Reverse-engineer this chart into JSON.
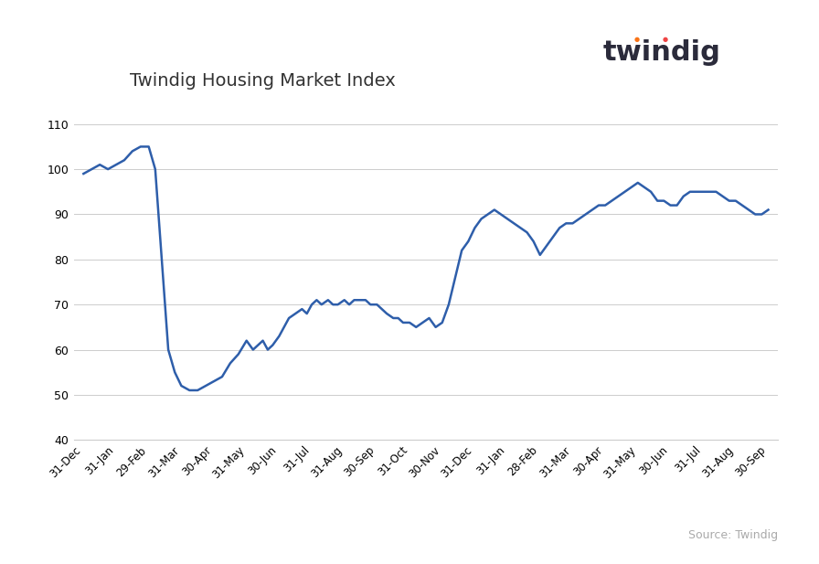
{
  "title": "Twindig Housing Market Index",
  "line_color": "#2E5EAA",
  "line_width": 1.8,
  "background_color": "#ffffff",
  "source_text": "Source: Twindig",
  "ylim": [
    40,
    115
  ],
  "yticks": [
    40,
    50,
    60,
    70,
    80,
    90,
    100,
    110
  ],
  "x_labels": [
    "31-Dec",
    "31-Jan",
    "29-Feb",
    "31-Mar",
    "30-Apr",
    "31-May",
    "30-Jun",
    "31-Jul",
    "31-Aug",
    "30-Sep",
    "31-Oct",
    "30-Nov",
    "31-Dec",
    "31-Jan",
    "28-Feb",
    "31-Mar",
    "30-Apr",
    "31-May",
    "30-Jun",
    "31-Jul",
    "31-Aug",
    "30-Sep"
  ],
  "time_points": [
    0.0,
    0.25,
    0.5,
    0.75,
    1.0,
    1.25,
    1.5,
    1.75,
    2.0,
    2.2,
    2.4,
    2.6,
    2.8,
    3.0,
    3.25,
    3.5,
    3.75,
    4.0,
    4.25,
    4.5,
    4.75,
    5.0,
    5.1,
    5.2,
    5.35,
    5.5,
    5.65,
    5.8,
    6.0,
    6.15,
    6.3,
    6.5,
    6.7,
    6.85,
    7.0,
    7.15,
    7.3,
    7.5,
    7.65,
    7.8,
    8.0,
    8.15,
    8.3,
    8.5,
    8.65,
    8.8,
    9.0,
    9.15,
    9.3,
    9.5,
    9.65,
    9.8,
    10.0,
    10.2,
    10.4,
    10.6,
    10.8,
    11.0,
    11.2,
    11.4,
    11.6,
    11.8,
    12.0,
    12.2,
    12.4,
    12.6,
    12.8,
    13.0,
    13.2,
    13.4,
    13.6,
    13.8,
    14.0,
    14.2,
    14.4,
    14.6,
    14.8,
    15.0,
    15.2,
    15.4,
    15.6,
    15.8,
    16.0,
    16.2,
    16.4,
    16.6,
    16.8,
    17.0,
    17.2,
    17.4,
    17.6,
    17.8,
    18.0,
    18.2,
    18.4,
    18.6,
    18.8,
    19.0,
    19.2,
    19.4,
    19.6,
    19.8,
    20.0,
    20.2,
    20.4,
    20.6,
    20.8,
    21.0
  ],
  "values": [
    99,
    100,
    101,
    100,
    101,
    102,
    104,
    105,
    105,
    100,
    80,
    60,
    55,
    52,
    51,
    51,
    52,
    53,
    54,
    57,
    59,
    62,
    61,
    60,
    61,
    62,
    60,
    61,
    63,
    65,
    67,
    68,
    69,
    68,
    70,
    71,
    70,
    71,
    70,
    70,
    71,
    70,
    71,
    71,
    71,
    70,
    70,
    69,
    68,
    67,
    67,
    66,
    66,
    65,
    66,
    67,
    65,
    66,
    70,
    76,
    82,
    84,
    87,
    89,
    90,
    91,
    90,
    89,
    88,
    87,
    86,
    84,
    81,
    83,
    85,
    87,
    88,
    88,
    89,
    90,
    91,
    92,
    92,
    93,
    94,
    95,
    96,
    97,
    96,
    95,
    93,
    93,
    92,
    92,
    94,
    95,
    95,
    95,
    95,
    95,
    94,
    93,
    93,
    92,
    91,
    90,
    90,
    91
  ],
  "twindig_text_color": "#2b2b3b",
  "twindig_dot1_color": "#f97316",
  "twindig_dot2_color": "#ef4444"
}
